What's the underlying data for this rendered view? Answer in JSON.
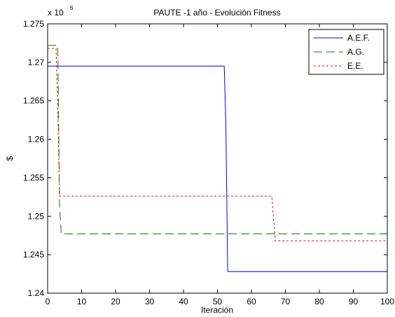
{
  "chart_data": {
    "type": "line",
    "title": "PAUTE -1 año - Evolución Fitness",
    "xlabel": "Iteración",
    "ylabel": "$",
    "y_multiplier_label": "x 10",
    "y_multiplier_exp": "6",
    "xlim": [
      0,
      100
    ],
    "ylim": [
      1.24,
      1.275
    ],
    "x_ticks": [
      "0",
      "10",
      "20",
      "30",
      "40",
      "50",
      "60",
      "70",
      "80",
      "90",
      "100"
    ],
    "y_ticks": [
      "1.24",
      "1.245",
      "1.25",
      "1.255",
      "1.26",
      "1.265",
      "1.27",
      "1.275"
    ],
    "grid": false,
    "legend_position": "top-right",
    "series": [
      {
        "name": "A.E.F.",
        "color": "#0000ff",
        "style": "solid",
        "x": [
          0,
          52,
          52.5,
          53,
          100
        ],
        "y": [
          1.2695,
          1.2695,
          1.2615,
          1.2428,
          1.2428
        ]
      },
      {
        "name": "A.G.",
        "color": "#008000",
        "style": "dashed",
        "x": [
          0,
          3,
          3.5,
          4,
          100
        ],
        "y": [
          1.2722,
          1.2722,
          1.2515,
          1.2477,
          1.2477
        ]
      },
      {
        "name": "E.E.",
        "color": "#ff0000",
        "style": "dotted",
        "x": [
          0,
          2.5,
          3,
          3.5,
          66,
          67,
          100
        ],
        "y": [
          1.2718,
          1.2718,
          1.264,
          1.2526,
          1.2526,
          1.2468,
          1.2468
        ]
      }
    ]
  }
}
